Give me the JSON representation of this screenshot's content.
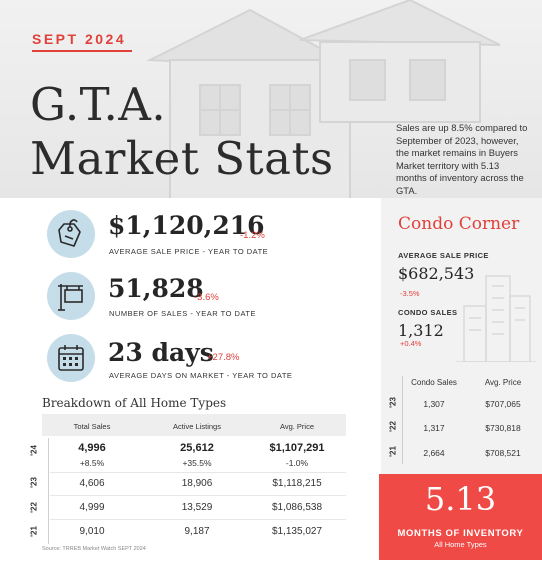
{
  "header": {
    "date_tag": "SEPT 2024",
    "title_line1": "G.T.A.",
    "title_line2": "Market Stats",
    "summary": "Sales are up 8.5% compared to September of 2023, however, the market remains in Buyers Market territory with 5.13 months of inventory across the GTA."
  },
  "stats": [
    {
      "value": "$1,120,216",
      "change": "-1.2%",
      "label": "AVERAGE SALE PRICE - YEAR TO DATE",
      "icon": "price-tag-icon"
    },
    {
      "value": "51,828",
      "change": "-3.6%",
      "label": "NUMBER OF SALES - YEAR TO DATE",
      "icon": "for-sale-sign-icon"
    },
    {
      "value": "23 days",
      "change": "+27.8%",
      "label": "AVERAGE DAYS ON MARKET - YEAR TO DATE",
      "icon": "calendar-icon"
    }
  ],
  "breakdown": {
    "title": "Breakdown of All Home Types",
    "columns": [
      "Total Sales",
      "Active Listings",
      "Avg. Price"
    ],
    "rows": [
      {
        "year": "'24",
        "total_sales": "4,996",
        "total_sales_change": "+8.5%",
        "active_listings": "25,612",
        "active_listings_change": "+35.5%",
        "avg_price": "$1,107,291",
        "avg_price_change": "-1.0%"
      },
      {
        "year": "'23",
        "total_sales": "4,606",
        "active_listings": "18,906",
        "avg_price": "$1,118,215"
      },
      {
        "year": "'22",
        "total_sales": "4,999",
        "active_listings": "13,529",
        "avg_price": "$1,086,538"
      },
      {
        "year": "'21",
        "total_sales": "9,010",
        "active_listings": "9,187",
        "avg_price": "$1,135,027"
      }
    ],
    "source": "Source: TRREB Market Watch SEPT 2024"
  },
  "condo": {
    "title": "Condo Corner",
    "avg_price_label": "AVERAGE SALE PRICE",
    "avg_price": "$682,543",
    "avg_price_change": "-3.5%",
    "sales_label": "CONDO SALES",
    "sales": "1,312",
    "sales_change": "+0.4%",
    "columns": [
      "Condo Sales",
      "Avg. Price"
    ],
    "rows": [
      {
        "year": "'23",
        "sales": "1,307",
        "avg_price": "$707,065"
      },
      {
        "year": "'22",
        "sales": "1,317",
        "avg_price": "$730,818"
      },
      {
        "year": "'21",
        "sales": "2,664",
        "avg_price": "$708,521"
      }
    ]
  },
  "inventory": {
    "value": "5.13",
    "label": "MONTHS OF INVENTORY",
    "sub": "All Home Types"
  },
  "colors": {
    "accent": "#e0413b",
    "icon_bg": "#c5dce9",
    "inventory_bg": "#ef4a46"
  }
}
